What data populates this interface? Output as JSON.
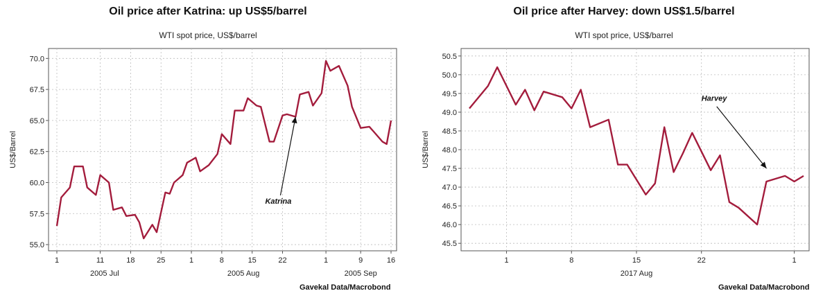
{
  "chart_data": [
    {
      "type": "line",
      "title": "Oil price after Katrina: up US$5/barrel",
      "subtitle": "WTI spot price, US$/barrel",
      "ylabel": "US$/Barrel",
      "xlabel": "",
      "source": "Gavekal Data/Macrobond",
      "ylim": [
        54.5,
        70.8
      ],
      "yticks": [
        55.0,
        57.5,
        60.0,
        62.5,
        65.0,
        67.5,
        70.0
      ],
      "ytick_labels": [
        "55.0",
        "57.5",
        "60.0",
        "62.5",
        "65.0",
        "67.5",
        "70.0"
      ],
      "x_start": "2005-07-01",
      "x_end": "2005-09-16",
      "xticks": [
        {
          "date": "2005-07-01",
          "label": "1"
        },
        {
          "date": "2005-07-11",
          "label": "11"
        },
        {
          "date": "2005-07-18",
          "label": "18"
        },
        {
          "date": "2005-07-25",
          "label": "25"
        },
        {
          "date": "2005-08-01",
          "label": "1"
        },
        {
          "date": "2005-08-08",
          "label": "8"
        },
        {
          "date": "2005-08-15",
          "label": "15"
        },
        {
          "date": "2005-08-22",
          "label": "22"
        },
        {
          "date": "2005-09-01",
          "label": "1"
        },
        {
          "date": "2005-09-09",
          "label": "9"
        },
        {
          "date": "2005-09-16",
          "label": "16"
        }
      ],
      "month_labels": [
        {
          "date": "2005-07-12",
          "label": "2005 Jul"
        },
        {
          "date": "2005-08-13",
          "label": "2005 Aug"
        },
        {
          "date": "2005-09-09",
          "label": "2005 Sep"
        }
      ],
      "grid": true,
      "line_color": "#a31c3c",
      "series": [
        {
          "x": [
            "2005-07-01",
            "2005-07-02",
            "2005-07-04",
            "2005-07-05",
            "2005-07-07",
            "2005-07-08",
            "2005-07-10",
            "2005-07-11",
            "2005-07-13",
            "2005-07-14",
            "2005-07-16",
            "2005-07-17",
            "2005-07-19",
            "2005-07-20",
            "2005-07-21",
            "2005-07-23",
            "2005-07-24",
            "2005-07-26",
            "2005-07-27",
            "2005-07-28",
            "2005-07-30",
            "2005-07-31",
            "2005-08-02",
            "2005-08-03",
            "2005-08-05",
            "2005-08-07",
            "2005-08-08",
            "2005-08-10",
            "2005-08-11",
            "2005-08-13",
            "2005-08-14",
            "2005-08-16",
            "2005-08-17",
            "2005-08-19",
            "2005-08-20",
            "2005-08-22",
            "2005-08-23",
            "2005-08-25",
            "2005-08-26",
            "2005-08-28",
            "2005-08-29",
            "2005-08-31",
            "2005-09-01",
            "2005-09-02",
            "2005-09-04",
            "2005-09-06",
            "2005-09-07",
            "2005-09-09",
            "2005-09-11",
            "2005-09-12",
            "2005-09-14",
            "2005-09-15",
            "2005-09-16"
          ],
          "values": [
            56.5,
            58.8,
            59.6,
            61.3,
            61.3,
            59.6,
            59.0,
            60.6,
            60.0,
            57.8,
            58.0,
            57.3,
            57.4,
            56.8,
            55.5,
            56.6,
            56.0,
            59.2,
            59.1,
            60.0,
            60.6,
            61.6,
            62.0,
            60.9,
            61.4,
            62.3,
            63.9,
            63.1,
            65.8,
            65.8,
            66.8,
            66.2,
            66.1,
            63.3,
            63.3,
            65.4,
            65.5,
            65.3,
            67.1,
            67.3,
            66.2,
            67.2,
            69.8,
            69.0,
            69.4,
            67.8,
            66.1,
            64.4,
            64.5,
            64.1,
            63.3,
            63.1,
            65.0
          ]
        }
      ],
      "annotation": {
        "text": "Katrina",
        "x": "2005-08-18",
        "y": 58.3,
        "arrow_to_x": "2005-08-25",
        "arrow_to_y": 65.3
      }
    },
    {
      "type": "line",
      "title": "Oil price after Harvey: down US$1.5/barrel",
      "subtitle": "WTI spot price, US$/barrel",
      "ylabel": "US$/Barrel",
      "xlabel": "",
      "source": "Gavekal Data/Macrobond",
      "ylim": [
        45.3,
        50.7
      ],
      "yticks": [
        45.5,
        46.0,
        46.5,
        47.0,
        47.5,
        48.0,
        48.5,
        49.0,
        49.5,
        50.0,
        50.5
      ],
      "ytick_labels": [
        "45.5",
        "46.0",
        "46.5",
        "47.0",
        "47.5",
        "48.0",
        "48.5",
        "49.0",
        "49.5",
        "50.0",
        "50.5"
      ],
      "x_start": "2017-07-28",
      "x_end": "2017-09-02",
      "xticks": [
        {
          "date": "2017-08-01",
          "label": "1"
        },
        {
          "date": "2017-08-08",
          "label": "8"
        },
        {
          "date": "2017-08-15",
          "label": "15"
        },
        {
          "date": "2017-08-22",
          "label": "22"
        },
        {
          "date": "2017-09-01",
          "label": "1"
        }
      ],
      "month_labels": [
        {
          "date": "2017-08-15",
          "label": "2017 Aug"
        }
      ],
      "grid": true,
      "line_color": "#a31c3c",
      "series": [
        {
          "x": [
            "2017-07-28",
            "2017-07-30",
            "2017-07-31",
            "2017-08-02",
            "2017-08-03",
            "2017-08-04",
            "2017-08-05",
            "2017-08-07",
            "2017-08-08",
            "2017-08-09",
            "2017-08-10",
            "2017-08-12",
            "2017-08-13",
            "2017-08-14",
            "2017-08-15",
            "2017-08-16",
            "2017-08-17",
            "2017-08-18",
            "2017-08-19",
            "2017-08-20",
            "2017-08-21",
            "2017-08-23",
            "2017-08-24",
            "2017-08-25",
            "2017-08-26",
            "2017-08-28",
            "2017-08-29",
            "2017-08-31",
            "2017-09-01",
            "2017-09-02"
          ],
          "values": [
            49.1,
            49.7,
            50.2,
            49.2,
            49.6,
            49.05,
            49.55,
            49.4,
            49.1,
            49.6,
            48.6,
            48.8,
            47.6,
            47.6,
            47.2,
            46.8,
            47.1,
            48.6,
            47.4,
            47.9,
            48.45,
            47.45,
            47.85,
            46.6,
            46.45,
            46.0,
            47.15,
            47.3,
            47.15,
            47.3
          ]
        }
      ],
      "annotation": {
        "text": "Harvey",
        "x": "2017-08-22",
        "y": 49.3,
        "arrow_to_x": "2017-08-29",
        "arrow_to_y": 47.5
      }
    }
  ]
}
